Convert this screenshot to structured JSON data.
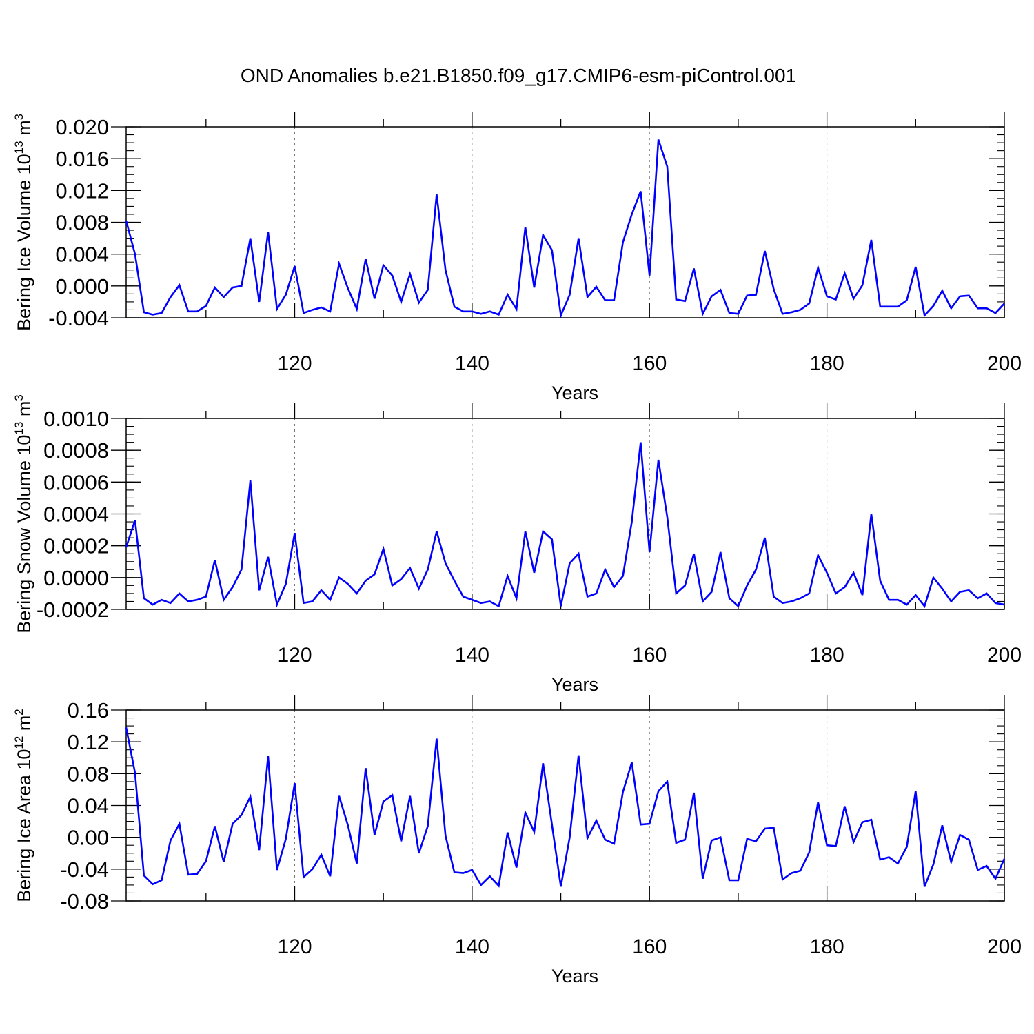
{
  "figure": {
    "title": "OND Anomalies b.e21.B1850.f09_g17.CMIP6-esm-piControl.001"
  },
  "style": {
    "line_color": "#0000ff",
    "axis_color": "#000000",
    "grid_color": "#777777"
  },
  "chart_data": [
    {
      "type": "line",
      "title": "OND Anomalies b.e21.B1850.f09_g17.CMIP6-esm-piControl.001",
      "xlabel": "Years",
      "ylabel_main": "Bering Ice Volume 10",
      "ylabel_exp": "13",
      "ylabel_unit": " m",
      "ylabel_unit_exp": "3",
      "xlim": [
        101,
        200
      ],
      "ylim": [
        -0.004,
        0.02
      ],
      "x_ticks": [
        120,
        140,
        160,
        180,
        200
      ],
      "x_tick_labels": [
        "120",
        "140",
        "160",
        "180",
        "200"
      ],
      "y_ticks": [
        -0.004,
        0.0,
        0.004,
        0.008,
        0.012,
        0.016,
        0.02
      ],
      "y_tick_labels": [
        "-0.004",
        "0.000",
        "0.004",
        "0.008",
        "0.012",
        "0.016",
        "0.020"
      ],
      "y_minor_step": 0.001,
      "gridlines_x": [
        120,
        140,
        160,
        180
      ],
      "x_start": 101,
      "series": [
        {
          "name": "Bering Ice Volume",
          "values": [
            0.0082,
            0.004,
            -0.0033,
            -0.0036,
            -0.0034,
            -0.0014,
            0.0001,
            -0.0032,
            -0.0032,
            -0.0025,
            -0.0002,
            -0.0014,
            -0.0002,
            0.0,
            0.006,
            -0.002,
            0.0068,
            -0.0029,
            -0.0011,
            0.0025,
            -0.0034,
            -0.003,
            -0.0027,
            -0.0032,
            0.0028,
            -0.0003,
            -0.0029,
            0.0034,
            -0.0016,
            0.0026,
            0.0013,
            -0.002,
            0.0015,
            -0.0021,
            -0.0005,
            0.0115,
            0.002,
            -0.0026,
            -0.0032,
            -0.0032,
            -0.0035,
            -0.0032,
            -0.0036,
            -0.0011,
            -0.0029,
            0.0074,
            -0.0002,
            0.0064,
            0.0045,
            -0.0037,
            -0.0011,
            0.006,
            -0.0014,
            -0.0001,
            -0.0018,
            -0.0018,
            0.0055,
            0.009,
            0.0119,
            0.0013,
            0.0184,
            0.015,
            -0.0017,
            -0.0019,
            0.0022,
            -0.0035,
            -0.0013,
            -0.0005,
            -0.0034,
            -0.0035,
            -0.0012,
            -0.0011,
            0.0044,
            -0.0004,
            -0.0035,
            -0.0033,
            -0.003,
            -0.0022,
            0.0023,
            -0.0013,
            -0.0017,
            0.0016,
            -0.0016,
            0.0001,
            0.0058,
            -0.0026,
            -0.0026,
            -0.0026,
            -0.0018,
            0.0024,
            -0.0037,
            -0.0025,
            -0.0006,
            -0.0028,
            -0.0013,
            -0.0012,
            -0.0028,
            -0.0028,
            -0.0034,
            -0.0022
          ]
        }
      ]
    },
    {
      "type": "line",
      "xlabel": "Years",
      "ylabel_main": "Bering Snow Volume 10",
      "ylabel_exp": "13",
      "ylabel_unit": " m",
      "ylabel_unit_exp": "3",
      "xlim": [
        101,
        200
      ],
      "ylim": [
        -0.0002,
        0.001
      ],
      "x_ticks": [
        120,
        140,
        160,
        180,
        200
      ],
      "x_tick_labels": [
        "120",
        "140",
        "160",
        "180",
        "200"
      ],
      "y_ticks": [
        -0.0002,
        0.0,
        0.0002,
        0.0004,
        0.0006,
        0.0008,
        0.001
      ],
      "y_tick_labels": [
        "-0.0002",
        "0.0000",
        "0.0002",
        "0.0004",
        "0.0006",
        "0.0008",
        "0.0010"
      ],
      "y_minor_step": 5e-05,
      "gridlines_x": [
        120,
        140,
        160,
        180
      ],
      "x_start": 101,
      "series": [
        {
          "name": "Bering Snow Volume",
          "values": [
            0.00019,
            0.00036,
            -0.00013,
            -0.00017,
            -0.00014,
            -0.00016,
            -0.0001,
            -0.00015,
            -0.00014,
            -0.00012,
            0.00011,
            -0.00014,
            -6e-05,
            5e-05,
            0.00061,
            -8e-05,
            0.00013,
            -0.00017,
            -4e-05,
            0.00028,
            -0.00016,
            -0.00015,
            -8e-05,
            -0.00014,
            0.0,
            -4e-05,
            -0.0001,
            -2e-05,
            2e-05,
            0.00018,
            -5e-05,
            -1e-05,
            6e-05,
            -7e-05,
            5e-05,
            0.00029,
            9e-05,
            -2e-05,
            -0.00012,
            -0.00014,
            -0.00016,
            -0.00015,
            -0.00018,
            1e-05,
            -0.00013,
            0.00029,
            3e-05,
            0.00029,
            0.00024,
            -0.00018,
            9e-05,
            0.00015,
            -0.00012,
            -0.0001,
            5e-05,
            -6e-05,
            1e-05,
            0.00035,
            0.00085,
            0.00016,
            0.00074,
            0.00038,
            -0.0001,
            -5e-05,
            0.00015,
            -0.00015,
            -9e-05,
            0.00016,
            -0.00013,
            -0.00018,
            -5e-05,
            5e-05,
            0.00025,
            -0.00012,
            -0.00016,
            -0.00015,
            -0.00013,
            -0.0001,
            0.00014,
            3e-05,
            -0.0001,
            -6e-05,
            3e-05,
            -0.00011,
            0.0004,
            -2e-05,
            -0.00014,
            -0.00014,
            -0.00017,
            -0.00011,
            -0.00018,
            0.0,
            -7e-05,
            -0.00015,
            -9e-05,
            -8e-05,
            -0.00013,
            -0.0001,
            -0.00016,
            -0.00017
          ]
        }
      ]
    },
    {
      "type": "line",
      "xlabel": "Years",
      "ylabel_main": "Bering Ice Area 10",
      "ylabel_exp": "12",
      "ylabel_unit": " m",
      "ylabel_unit_exp": "2",
      "xlim": [
        101,
        200
      ],
      "ylim": [
        -0.08,
        0.16
      ],
      "x_ticks": [
        120,
        140,
        160,
        180,
        200
      ],
      "x_tick_labels": [
        "120",
        "140",
        "160",
        "180",
        "200"
      ],
      "y_ticks": [
        -0.08,
        -0.04,
        0.0,
        0.04,
        0.08,
        0.12,
        0.16
      ],
      "y_tick_labels": [
        "-0.08",
        "-0.04",
        "0.00",
        "0.04",
        "0.08",
        "0.12",
        "0.16"
      ],
      "y_minor_step": 0.01,
      "gridlines_x": [
        120,
        140,
        160,
        180
      ],
      "x_start": 101,
      "series": [
        {
          "name": "Bering Ice Area",
          "values": [
            0.138,
            0.081,
            -0.048,
            -0.059,
            -0.054,
            -0.004,
            0.017,
            -0.047,
            -0.046,
            -0.03,
            0.014,
            -0.031,
            0.017,
            0.028,
            0.051,
            -0.016,
            0.102,
            -0.041,
            -0.002,
            0.068,
            -0.05,
            -0.04,
            -0.022,
            -0.049,
            0.052,
            0.015,
            -0.033,
            0.087,
            0.003,
            0.045,
            0.053,
            -0.005,
            0.052,
            -0.02,
            0.014,
            0.124,
            0.002,
            -0.044,
            -0.045,
            -0.041,
            -0.06,
            -0.049,
            -0.061,
            0.006,
            -0.038,
            0.031,
            0.007,
            0.093,
            0.016,
            -0.062,
            0.0,
            0.103,
            -0.001,
            0.021,
            -0.003,
            -0.008,
            0.057,
            0.094,
            0.016,
            0.017,
            0.058,
            0.07,
            -0.007,
            -0.003,
            0.056,
            -0.052,
            -0.004,
            0.0,
            -0.054,
            -0.054,
            -0.002,
            -0.005,
            0.011,
            0.012,
            -0.053,
            -0.045,
            -0.042,
            -0.019,
            0.044,
            -0.01,
            -0.011,
            0.039,
            -0.006,
            0.019,
            0.022,
            -0.028,
            -0.025,
            -0.033,
            -0.012,
            0.058,
            -0.062,
            -0.034,
            0.015,
            -0.031,
            0.003,
            -0.003,
            -0.041,
            -0.036,
            -0.052,
            -0.027
          ]
        }
      ]
    }
  ]
}
